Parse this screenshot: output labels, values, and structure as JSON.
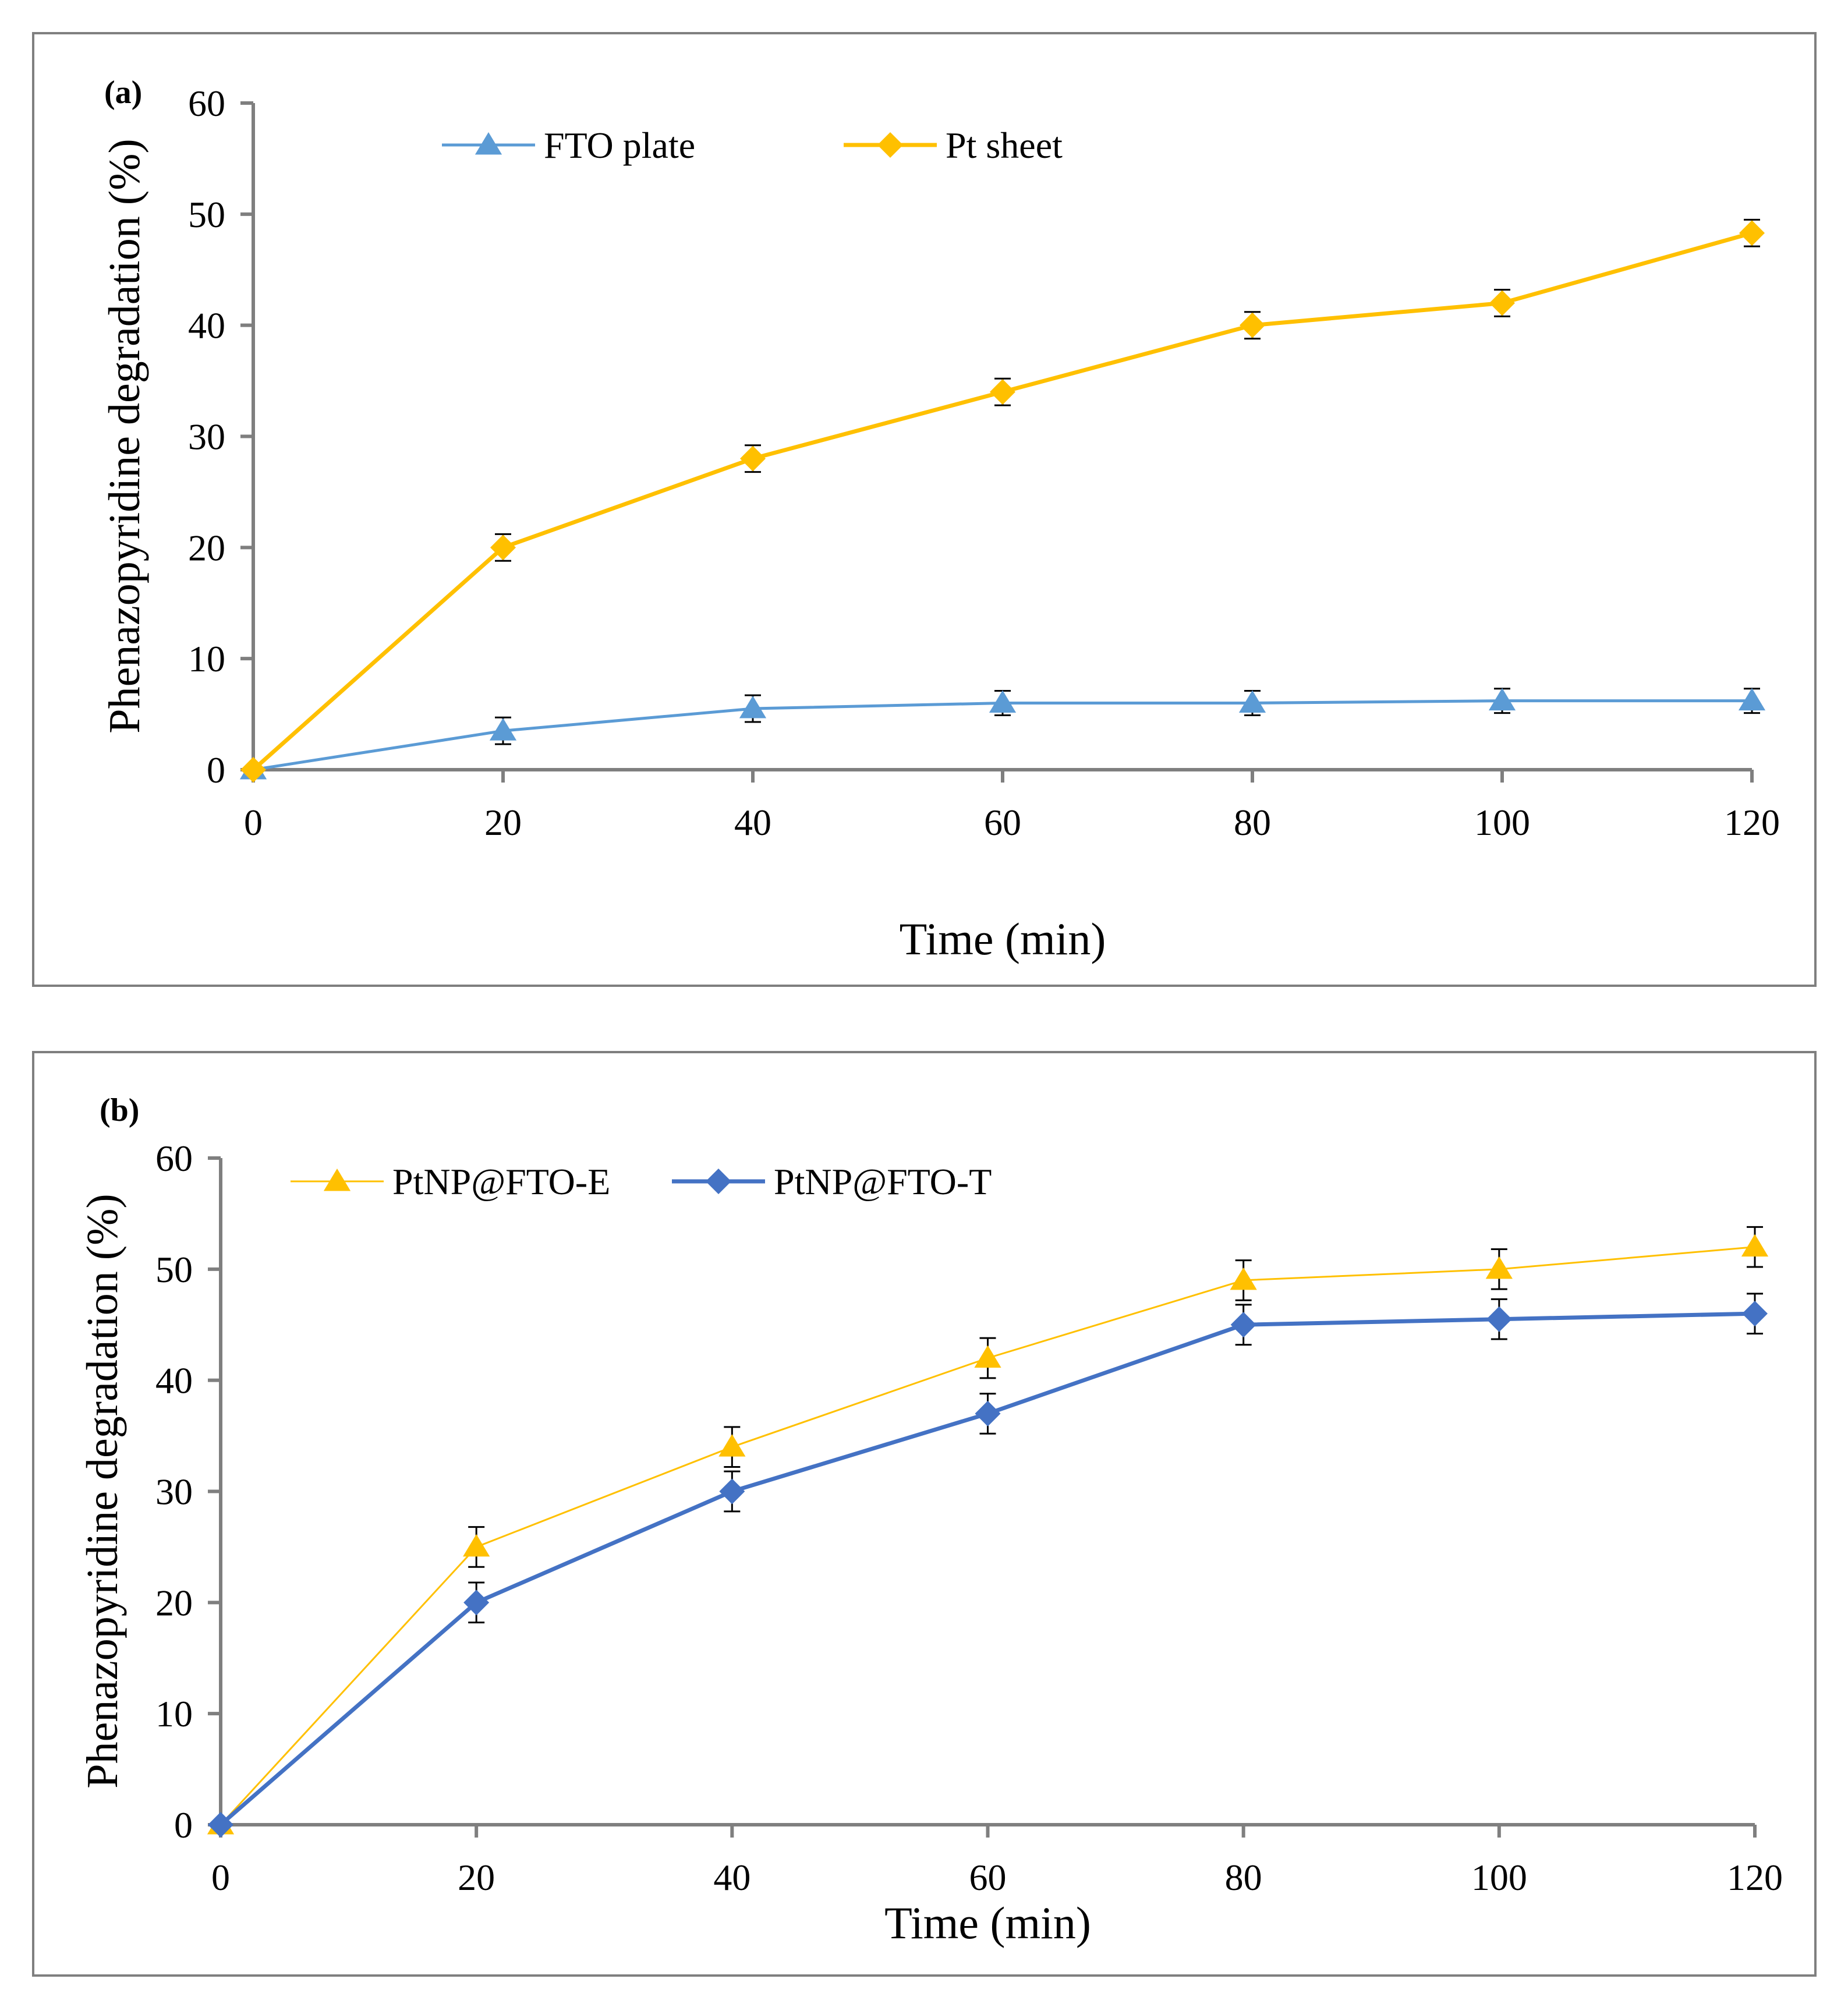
{
  "chart_data": [
    {
      "type": "line",
      "panel_label": "(a)",
      "xlabel": "Time (min)",
      "ylabel": "Phenazopyridine degradation (%)",
      "x": [
        0,
        20,
        40,
        60,
        80,
        100,
        120
      ],
      "xticks": [
        "0",
        "20",
        "40",
        "60",
        "80",
        "100",
        "120"
      ],
      "yticks": [
        "0",
        "10",
        "20",
        "30",
        "40",
        "50",
        "60"
      ],
      "xlim": [
        0,
        120
      ],
      "ylim": [
        0,
        60
      ],
      "grid": false,
      "legend_position": "top",
      "series": [
        {
          "name": "FTO plate",
          "marker": "triangle",
          "color": "#5b9bd5",
          "line_weight": "normal",
          "values": [
            0,
            3.5,
            5.5,
            6.0,
            6.0,
            6.2,
            6.2
          ],
          "errors": [
            0,
            1.2,
            1.2,
            1.1,
            1.1,
            1.1,
            1.1
          ]
        },
        {
          "name": "Pt sheet",
          "marker": "diamond",
          "color": "#ffc000",
          "line_weight": "bold",
          "values": [
            0,
            20,
            28,
            34,
            40,
            42,
            48.3
          ],
          "errors": [
            0,
            1.2,
            1.2,
            1.2,
            1.2,
            1.2,
            1.2
          ]
        }
      ]
    },
    {
      "type": "line",
      "panel_label": "(b)",
      "xlabel": "Time (min)",
      "ylabel": "Phenazopyridine degradation (%)",
      "x": [
        0,
        20,
        40,
        60,
        80,
        100,
        120
      ],
      "xticks": [
        "0",
        "20",
        "40",
        "60",
        "80",
        "100",
        "120"
      ],
      "yticks": [
        "0",
        "10",
        "20",
        "30",
        "40",
        "50",
        "60"
      ],
      "xlim": [
        0,
        120
      ],
      "ylim": [
        0,
        60
      ],
      "grid": false,
      "legend_position": "top-left",
      "series": [
        {
          "name": "PtNP@FTO-E",
          "marker": "triangle",
          "color": "#ffc000",
          "line_weight": "thin",
          "values": [
            0,
            25,
            34,
            42,
            49,
            50,
            52
          ],
          "errors": [
            0,
            1.8,
            1.8,
            1.8,
            1.8,
            1.8,
            1.8
          ]
        },
        {
          "name": "PtNP@FTO-T",
          "marker": "diamond",
          "color": "#4472c4",
          "line_weight": "bold",
          "values": [
            0,
            20,
            30,
            37,
            45,
            45.5,
            46
          ],
          "errors": [
            0,
            1.8,
            1.8,
            1.8,
            1.8,
            1.8,
            1.8
          ]
        }
      ]
    }
  ]
}
